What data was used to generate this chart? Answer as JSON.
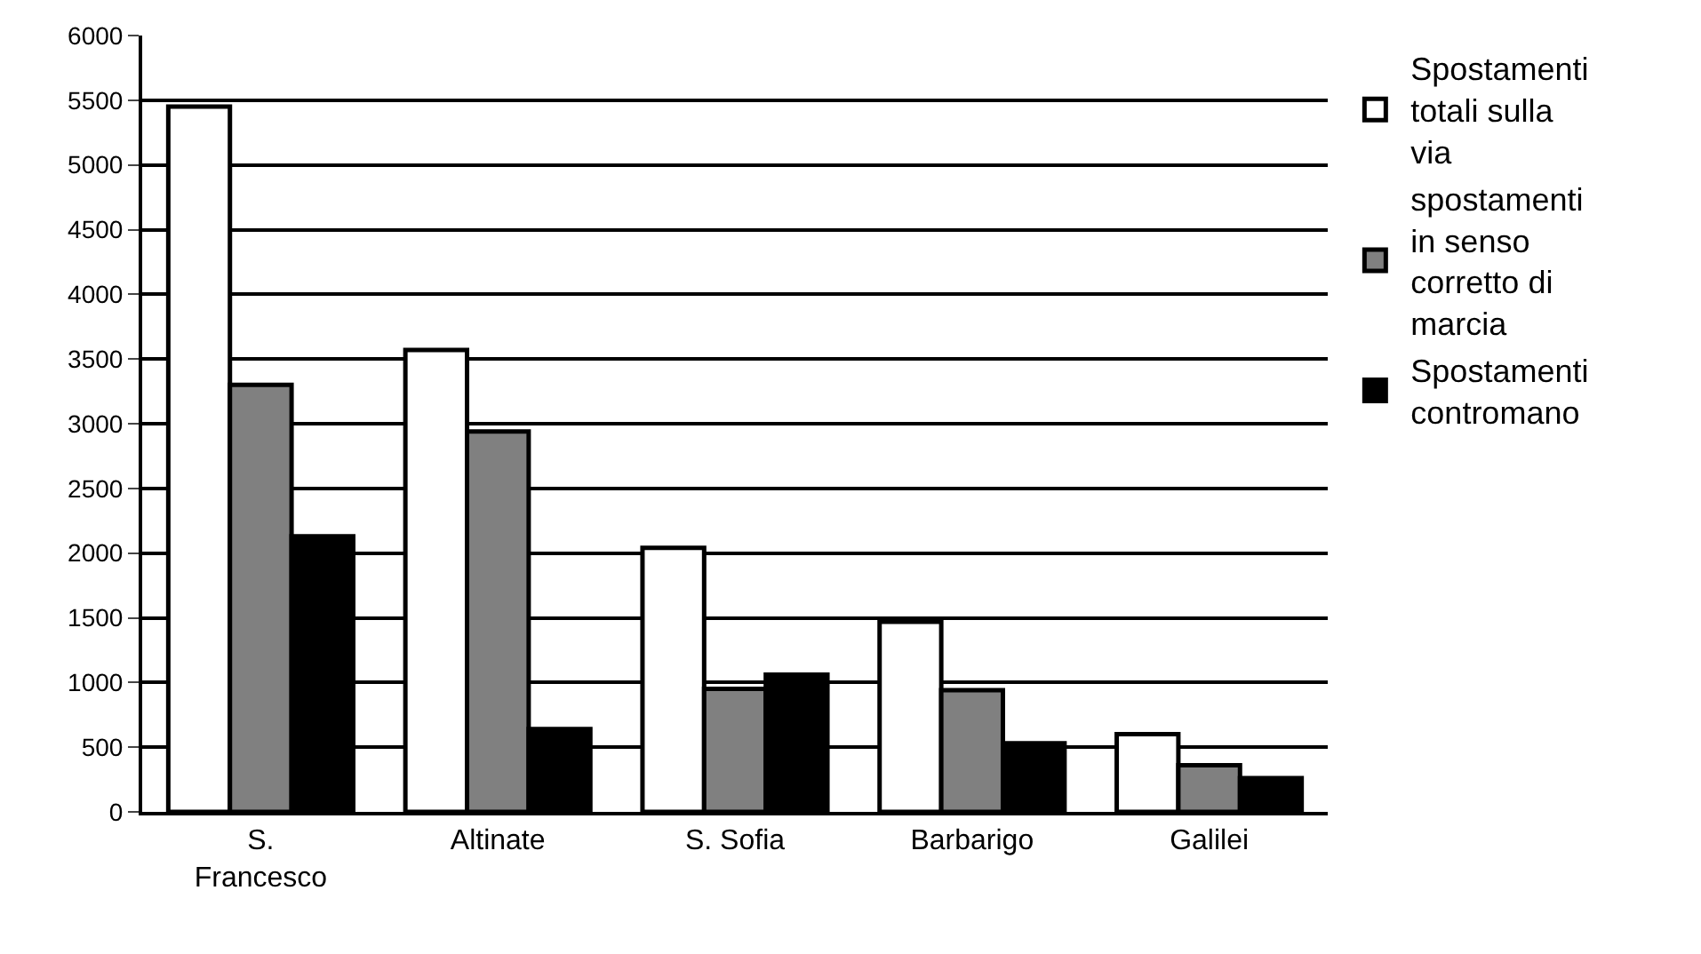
{
  "chart_data": {
    "type": "bar",
    "categories": [
      "S. Francesco",
      "Altinate",
      "S. Sofia",
      "Barbarigo",
      "Galilei"
    ],
    "series": [
      {
        "name": "Spostamenti totali sulla via",
        "color": "#ffffff",
        "values": [
          5450,
          3570,
          2040,
          1470,
          600
        ]
      },
      {
        "name": "spostamenti in senso corretto di marcia",
        "color": "#808080",
        "values": [
          3300,
          2940,
          950,
          940,
          360
        ]
      },
      {
        "name": "Spostamenti contromano",
        "color": "#000000",
        "values": [
          2130,
          640,
          1060,
          530,
          260
        ]
      }
    ],
    "ylim": [
      0,
      6000
    ],
    "yticks": [
      0,
      500,
      1000,
      1500,
      2000,
      2500,
      3000,
      3500,
      4000,
      4500,
      5000,
      5500,
      6000
    ],
    "grid": "y",
    "legend": "right"
  }
}
